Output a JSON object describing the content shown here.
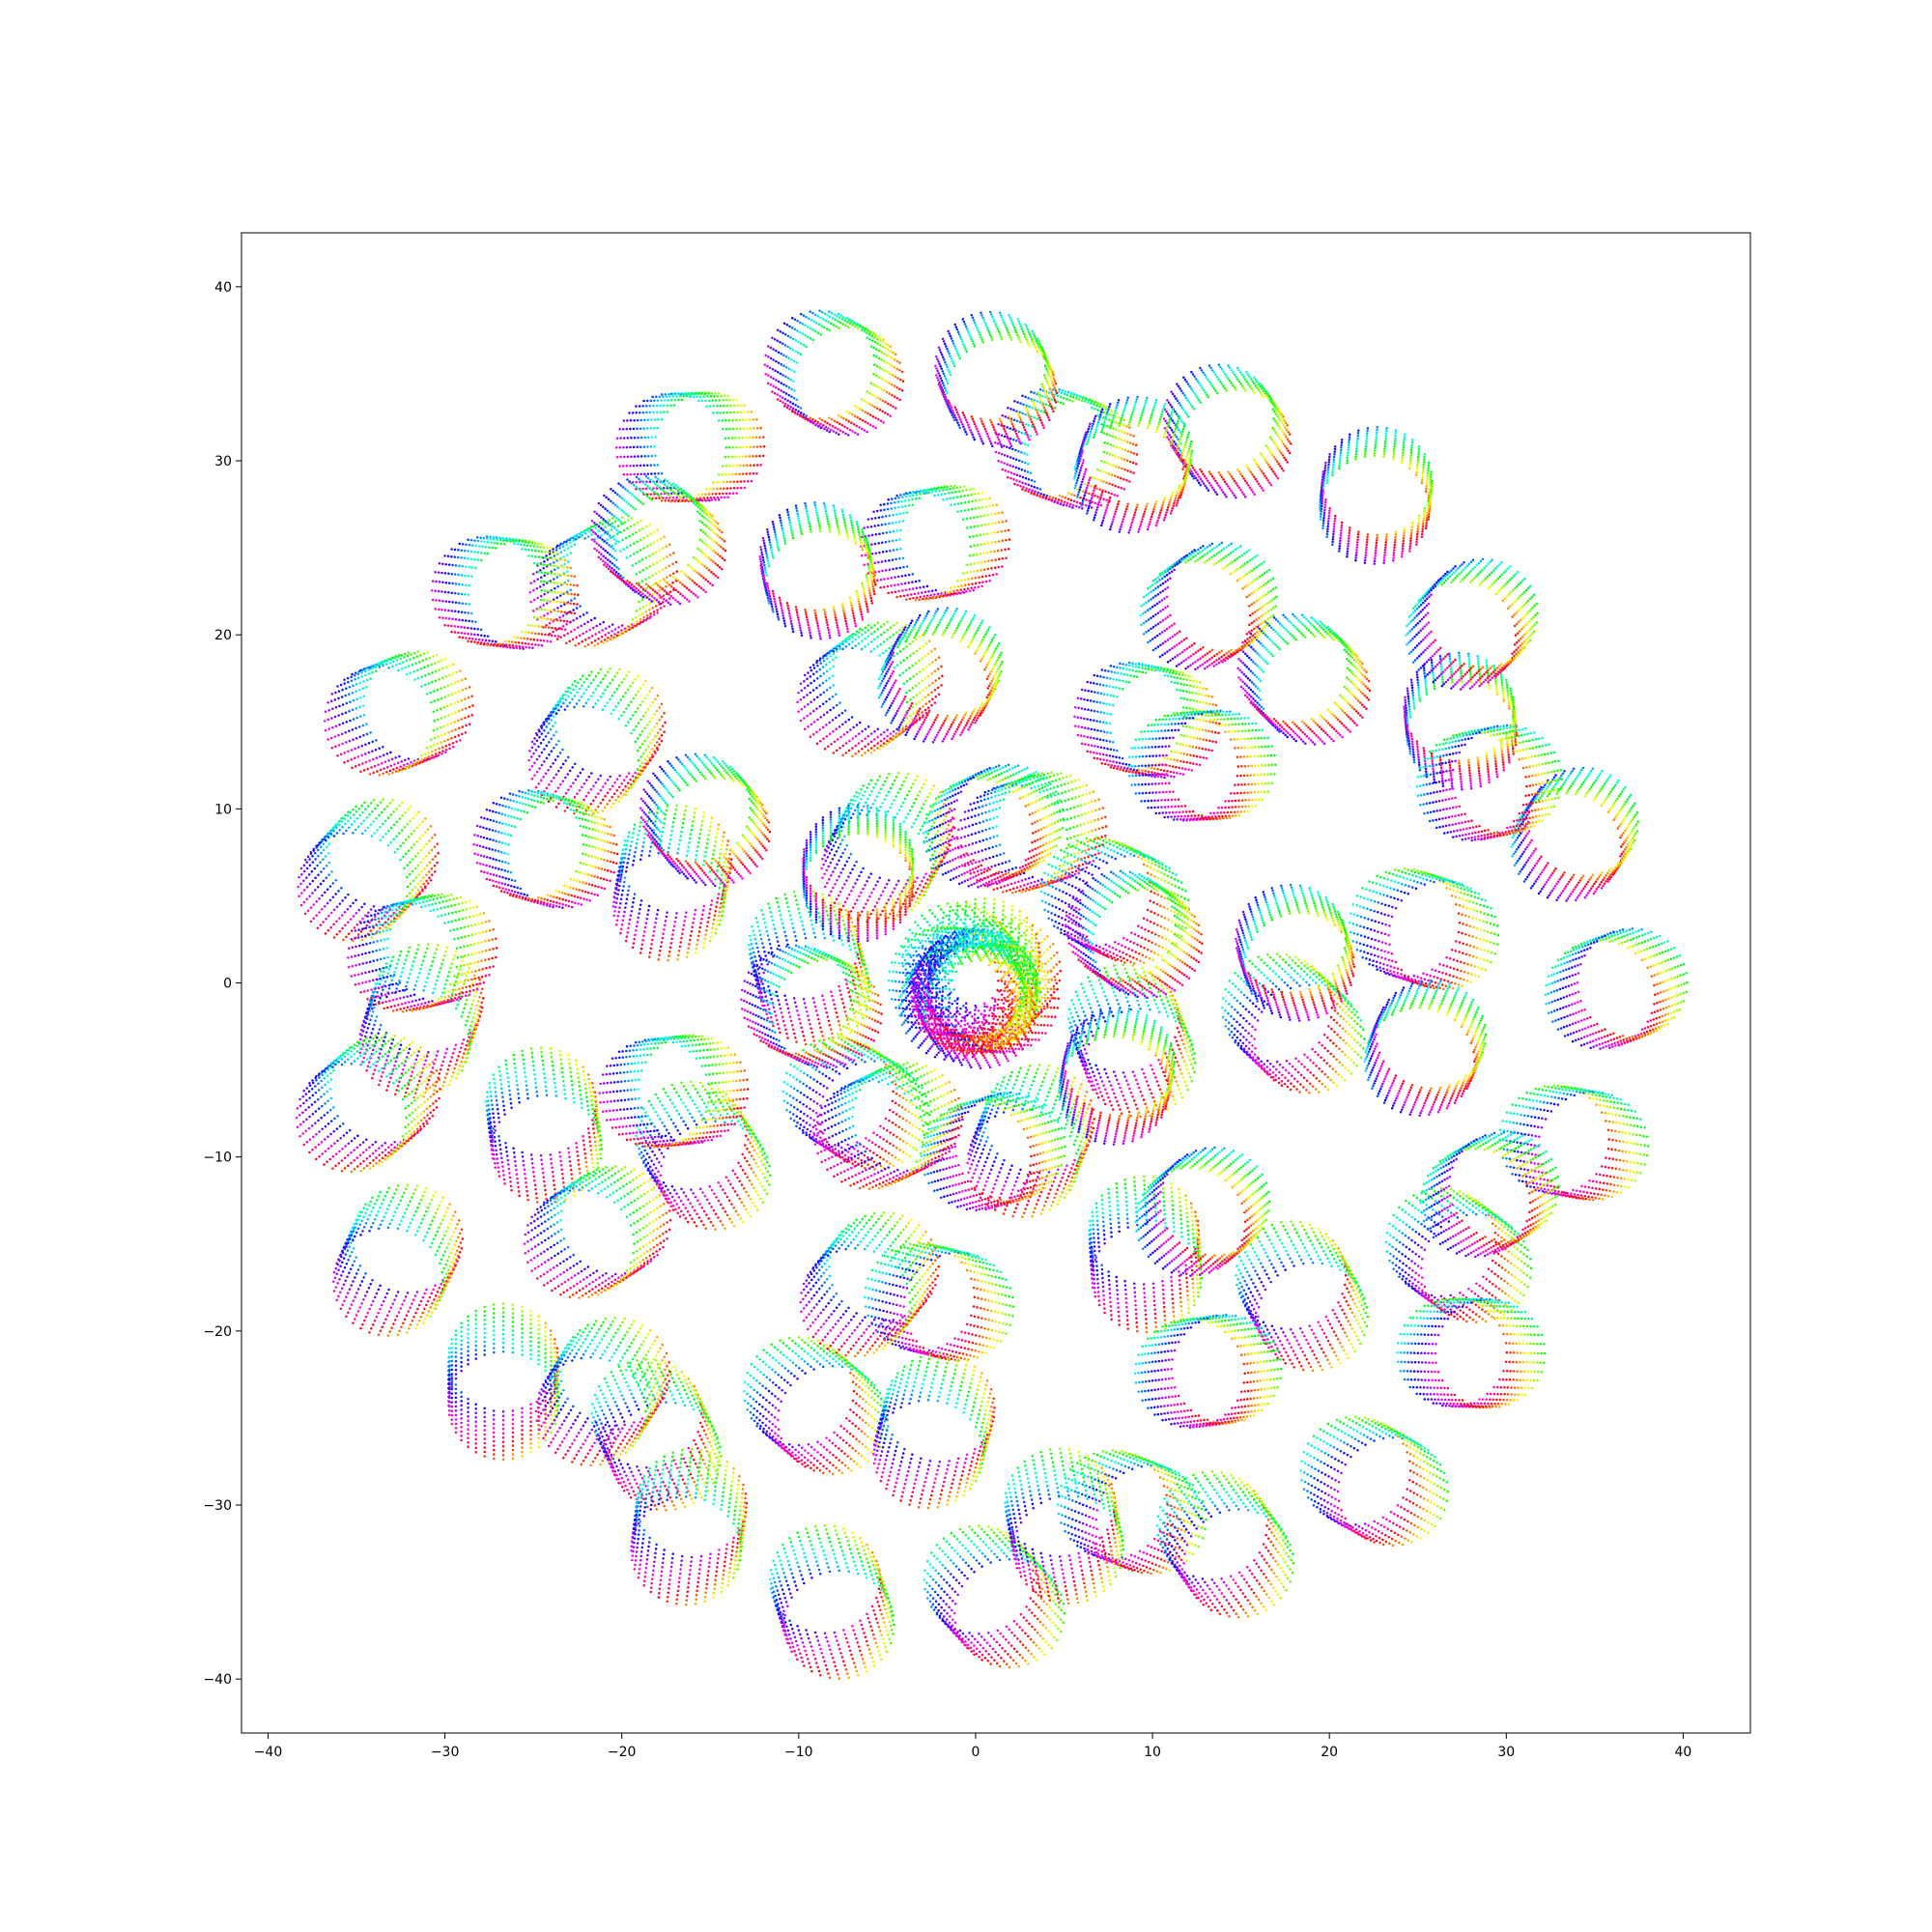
{
  "chart_data": {
    "type": "scatter",
    "title": "",
    "xlabel": "",
    "ylabel": "",
    "xlim": [
      -41.5,
      43.8
    ],
    "ylim": [
      -43.1,
      43.1
    ],
    "xticks": [
      -40,
      -30,
      -20,
      -10,
      0,
      10,
      20,
      30,
      40
    ],
    "yticks": [
      -40,
      -30,
      -20,
      -10,
      0,
      10,
      20,
      30,
      40
    ],
    "xtick_labels": [
      "−40",
      "−30",
      "−20",
      "−10",
      "0",
      "10",
      "20",
      "30",
      "40"
    ],
    "ytick_labels": [
      "−40",
      "−30",
      "−20",
      "−10",
      "0",
      "10",
      "20",
      "30",
      "40"
    ],
    "grid": false,
    "legend": "none",
    "colormap": "hsv",
    "marker_size": 2,
    "structure": {
      "big_loops": 7,
      "big_loop_center_radius": 18.5,
      "big_loop_radius": 17.8,
      "rings_per_loop": 12,
      "ring_radius": 3.1,
      "ring_dot_count": 36,
      "ring_offsets": 12,
      "ring_offset_step": 0.2
    }
  }
}
